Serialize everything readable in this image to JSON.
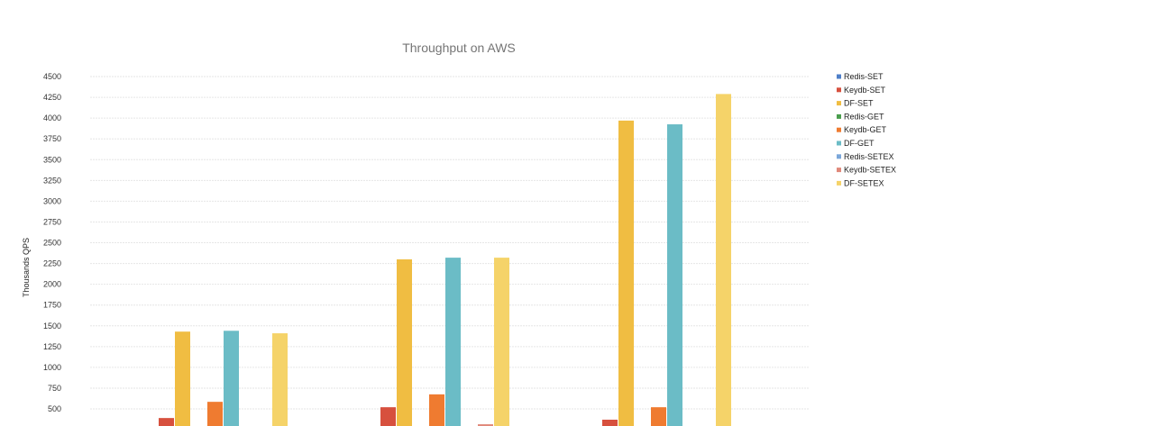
{
  "chart_data": {
    "type": "bar",
    "title": "Throughput on AWS",
    "xlabel": "",
    "ylabel": "Thousands QPS",
    "ylim": [
      0,
      4500
    ],
    "yticks": [
      500,
      750,
      1000,
      1250,
      1500,
      1750,
      2000,
      2250,
      2500,
      2750,
      3000,
      3250,
      3500,
      3750,
      4000,
      4250,
      4500
    ],
    "grid": true,
    "legend_position": "right",
    "categories": [
      "",
      "",
      ""
    ],
    "series": [
      {
        "name": "Redis-SET",
        "color": "#4e7fc9",
        "values": [
          null,
          null,
          null
        ]
      },
      {
        "name": "Keydb-SET",
        "color": "#d7503e",
        "values": [
          390,
          520,
          370
        ]
      },
      {
        "name": "DF-SET",
        "color": "#f0bd42",
        "values": [
          1430,
          2300,
          3970
        ]
      },
      {
        "name": "Redis-GET",
        "color": "#4a9e4d",
        "values": [
          null,
          null,
          null
        ]
      },
      {
        "name": "Keydb-GET",
        "color": "#ef7b30",
        "values": [
          585,
          675,
          520
        ]
      },
      {
        "name": "DF-GET",
        "color": "#6bbcc6",
        "values": [
          1440,
          2320,
          3925
        ]
      },
      {
        "name": "Redis-SETEX",
        "color": "#7ba7da",
        "values": [
          null,
          null,
          null
        ]
      },
      {
        "name": "Keydb-SETEX",
        "color": "#e0887a",
        "values": [
          null,
          315,
          null
        ]
      },
      {
        "name": "DF-SETEX",
        "color": "#f5d369",
        "values": [
          1410,
          2320,
          4290
        ]
      }
    ]
  }
}
